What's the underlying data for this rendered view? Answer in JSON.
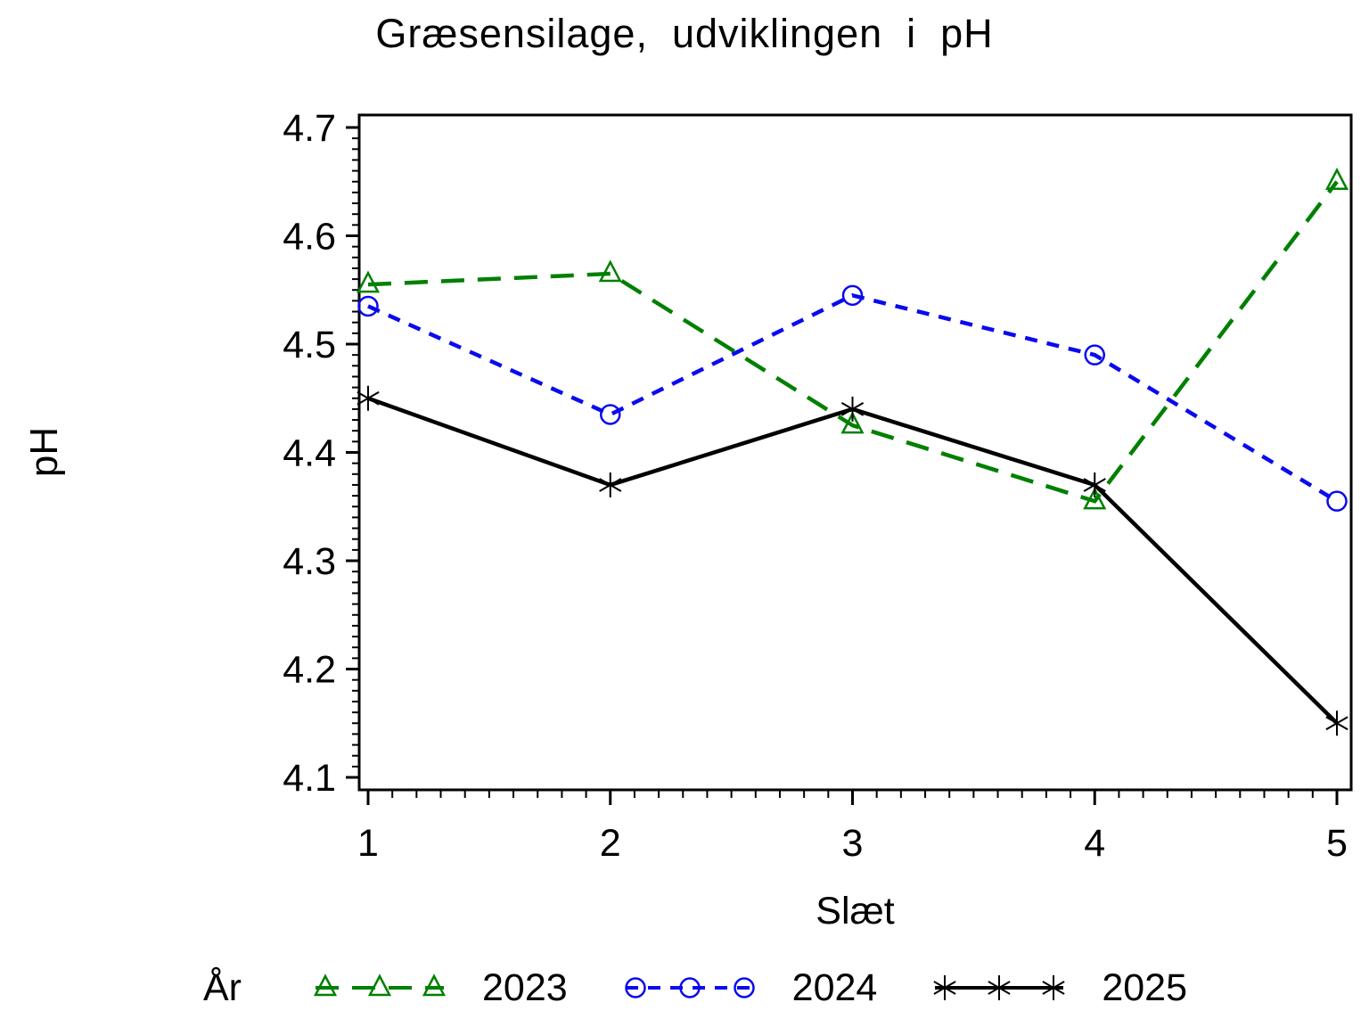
{
  "title": "Græsensilage,  udviklingen  i  pH",
  "chart_data": {
    "type": "line",
    "title": "Græsensilage, udviklingen i pH",
    "xlabel": "Slæt",
    "ylabel": "pH",
    "legend_title": "År",
    "legend_position": "bottom",
    "grid": false,
    "x": [
      1,
      2,
      3,
      4,
      5
    ],
    "xlim": [
      1,
      5
    ],
    "ylim": [
      4.1,
      4.7
    ],
    "y_major_step": 0.1,
    "y_minor_step": 0.01,
    "x_minor_step": 0.1,
    "y_tick_labels": [
      "4.1",
      "4.2",
      "4.3",
      "4.4",
      "4.5",
      "4.6",
      "4.7"
    ],
    "x_tick_labels": [
      "1",
      "2",
      "3",
      "4",
      "5"
    ],
    "series": [
      {
        "name": "2023",
        "color": "#008000",
        "dash": "long-dash",
        "marker": "triangle",
        "values": [
          4.555,
          4.565,
          4.425,
          4.355,
          4.65
        ]
      },
      {
        "name": "2024",
        "color": "#0a0aee",
        "dash": "short-dash",
        "marker": "circle",
        "values": [
          4.535,
          4.435,
          4.545,
          4.49,
          4.355
        ]
      },
      {
        "name": "2025",
        "color": "#000000",
        "dash": "solid",
        "marker": "star",
        "values": [
          4.45,
          4.37,
          4.44,
          4.37,
          4.15
        ]
      }
    ]
  }
}
